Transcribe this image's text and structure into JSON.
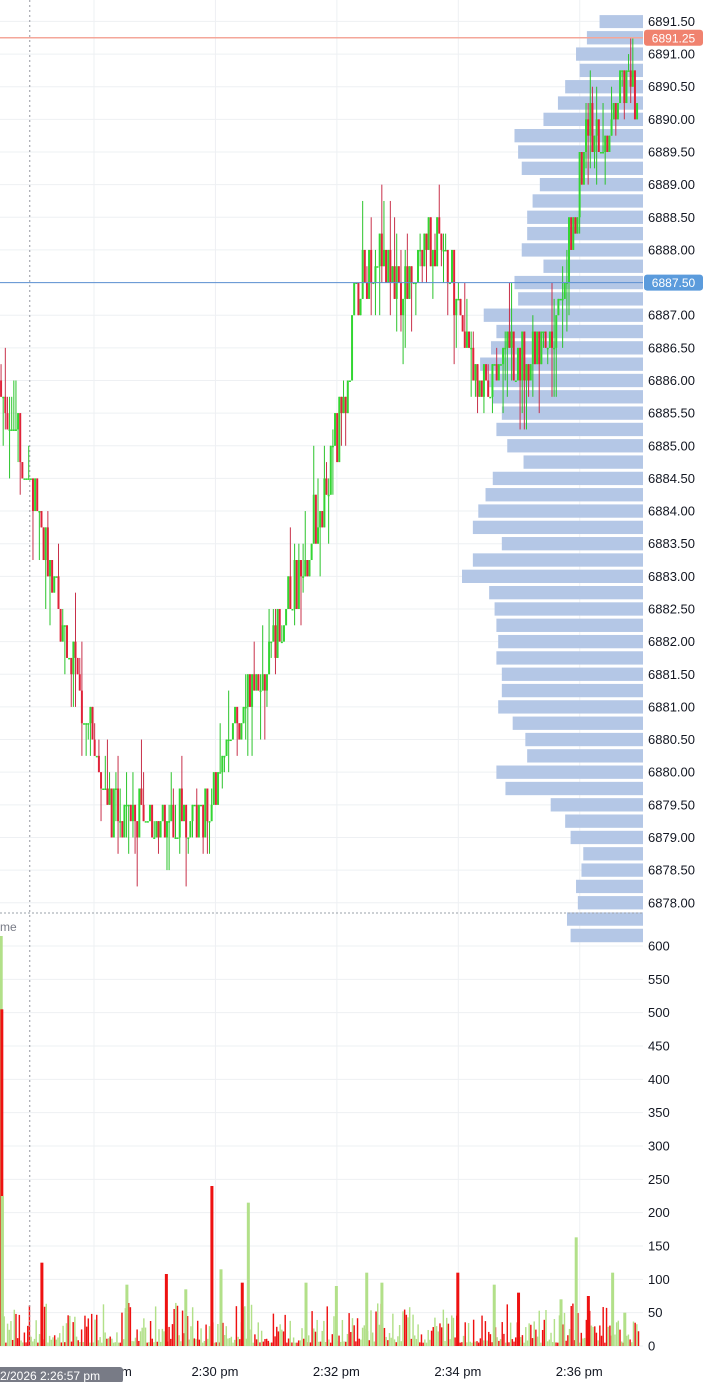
{
  "colors": {
    "up": "#33d633",
    "down": "#e0233a",
    "wick_up": "#2bc42b",
    "wick_down": "#c8304a",
    "vol_up": "#b2e089",
    "vol_down": "#ee1111",
    "profile": "#b4c7e6",
    "grid": "#eef0f3",
    "last_price_line": "#f4a79a",
    "last_price_badge": "#f0826f",
    "ref_line": "#5b8fd2",
    "ref_badge": "#5b9bdc",
    "crosshair": "#9598a1",
    "crosshair_badge": "#787b86"
  },
  "chart_data": [
    {
      "type": "candlestick",
      "title": "",
      "price_axis": {
        "ticks": [
          "6891.50",
          "6891.00",
          "6890.50",
          "6890.00",
          "6889.50",
          "6889.00",
          "6888.50",
          "6888.00",
          "6887.50",
          "6887.00",
          "6886.50",
          "6886.00",
          "6885.50",
          "6885.00",
          "6884.50",
          "6884.00",
          "6883.50",
          "6883.00",
          "6882.50",
          "6882.00",
          "6881.50",
          "6881.00",
          "6880.50",
          "6880.00",
          "6879.50",
          "6879.00",
          "6878.50",
          "6878.00"
        ],
        "range": [
          6877.65,
          6891.62
        ],
        "grid": true
      },
      "time_axis": {
        "labels": [
          "2:30 pm",
          "2:32 pm",
          "2:34 pm",
          "2:36 pm"
        ],
        "label_minutes": [
          30,
          32,
          34,
          36
        ],
        "range_minutes": [
          26.46,
          37.05
        ],
        "partial_label": "m",
        "grid": true
      },
      "last_price": "6891.25",
      "reference_price": "6887.50",
      "crosshair_time": "2/2026 2:26:57 pm",
      "price_path": [
        [
          26.5,
          6886.0
        ],
        [
          26.75,
          6885.3
        ],
        [
          27.1,
          6884.0
        ],
        [
          27.4,
          6882.6
        ],
        [
          27.7,
          6881.5
        ],
        [
          28.0,
          6880.5
        ],
        [
          28.3,
          6879.4
        ],
        [
          28.7,
          6879.2
        ],
        [
          29.0,
          6879.4
        ],
        [
          29.3,
          6879.3
        ],
        [
          29.7,
          6879.4
        ],
        [
          30.0,
          6879.7
        ],
        [
          30.3,
          6880.6
        ],
        [
          30.6,
          6881.5
        ],
        [
          30.9,
          6881.8
        ],
        [
          31.2,
          6882.6
        ],
        [
          31.55,
          6883.5
        ],
        [
          31.9,
          6884.6
        ],
        [
          32.15,
          6885.8
        ],
        [
          32.3,
          6887.2
        ],
        [
          32.7,
          6888.0
        ],
        [
          33.1,
          6887.4
        ],
        [
          33.4,
          6887.9
        ],
        [
          33.7,
          6888.3
        ],
        [
          33.95,
          6887.4
        ],
        [
          34.2,
          6886.2
        ],
        [
          34.45,
          6886.1
        ],
        [
          34.7,
          6886.4
        ],
        [
          34.95,
          6886.5
        ],
        [
          35.2,
          6886.3
        ],
        [
          35.5,
          6886.6
        ],
        [
          35.75,
          6887.6
        ],
        [
          35.95,
          6888.6
        ],
        [
          36.1,
          6890.0
        ],
        [
          36.35,
          6889.7
        ],
        [
          36.6,
          6890.0
        ],
        [
          36.8,
          6890.8
        ],
        [
          37.0,
          6889.8
        ]
      ],
      "candle_count": 300,
      "price_extremes": {
        "high": "6891.25",
        "low": "6878.25"
      }
    },
    {
      "type": "horizontal-bar",
      "title": "",
      "series_role": "volume-profile",
      "price_levels": [
        6891.62,
        6891.375,
        6891.125,
        6890.875,
        6890.625,
        6890.375,
        6890.125,
        6889.875,
        6889.625,
        6889.375,
        6889.125,
        6888.875,
        6888.625,
        6888.375,
        6888.125,
        6887.875,
        6887.625,
        6887.375,
        6887.125,
        6886.875,
        6886.625,
        6886.375,
        6886.125,
        6885.875,
        6885.625,
        6885.375,
        6885.125,
        6884.875,
        6884.625,
        6884.375,
        6884.125,
        6883.875,
        6883.625,
        6883.375,
        6883.125,
        6882.875,
        6882.625,
        6882.375,
        6882.125,
        6881.875,
        6881.625,
        6881.375,
        6881.125,
        6880.875,
        6880.625,
        6880.375,
        6880.125,
        6879.875,
        6879.625,
        6879.375,
        6879.125,
        6878.875,
        6878.625,
        6878.375,
        6878.125,
        6877.875,
        6877.625
      ],
      "values": [
        0.24,
        0.31,
        0.37,
        0.35,
        0.43,
        0.47,
        0.55,
        0.71,
        0.69,
        0.67,
        0.57,
        0.61,
        0.64,
        0.64,
        0.67,
        0.55,
        0.71,
        0.69,
        0.88,
        0.81,
        0.84,
        0.9,
        0.85,
        0.83,
        0.78,
        0.81,
        0.75,
        0.66,
        0.83,
        0.87,
        0.91,
        0.94,
        0.78,
        0.94,
        1.0,
        0.85,
        0.82,
        0.81,
        0.8,
        0.81,
        0.78,
        0.78,
        0.8,
        0.72,
        0.65,
        0.64,
        0.81,
        0.76,
        0.51,
        0.43,
        0.4,
        0.33,
        0.34,
        0.37,
        0.36,
        0.42,
        0.4
      ],
      "value_scale": "relative to the longest bar"
    },
    {
      "type": "bar",
      "title": "",
      "pane_title": "me",
      "y_axis": {
        "ticks": [
          "600",
          "550",
          "500",
          "450",
          "400",
          "350",
          "300",
          "250",
          "200",
          "150",
          "100",
          "50",
          "0"
        ],
        "range": [
          0,
          630
        ],
        "grid": true
      },
      "series": [
        {
          "name": "",
          "role": "up-volume"
        },
        {
          "name": "",
          "role": "down-volume"
        }
      ],
      "notable_bars": [
        {
          "minute": 26.48,
          "value": 615,
          "direction": "up"
        },
        {
          "minute": 26.49,
          "value": 505,
          "direction": "down"
        },
        {
          "minute": 26.5,
          "value": 225,
          "direction": "up"
        },
        {
          "minute": 27.15,
          "value": 125,
          "direction": "down"
        },
        {
          "minute": 28.55,
          "value": 92,
          "direction": "up"
        },
        {
          "minute": 29.2,
          "value": 108,
          "direction": "down"
        },
        {
          "minute": 29.52,
          "value": 85,
          "direction": "up"
        },
        {
          "minute": 29.95,
          "value": 240,
          "direction": "down"
        },
        {
          "minute": 30.1,
          "value": 115,
          "direction": "up"
        },
        {
          "minute": 30.45,
          "value": 95,
          "direction": "down"
        },
        {
          "minute": 30.55,
          "value": 215,
          "direction": "up"
        },
        {
          "minute": 31.5,
          "value": 95,
          "direction": "up"
        },
        {
          "minute": 32.0,
          "value": 90,
          "direction": "up"
        },
        {
          "minute": 32.5,
          "value": 110,
          "direction": "up"
        },
        {
          "minute": 32.75,
          "value": 95,
          "direction": "up"
        },
        {
          "minute": 34.0,
          "value": 110,
          "direction": "down"
        },
        {
          "minute": 34.6,
          "value": 92,
          "direction": "up"
        },
        {
          "minute": 35.0,
          "value": 80,
          "direction": "down"
        },
        {
          "minute": 35.7,
          "value": 70,
          "direction": "up"
        },
        {
          "minute": 35.95,
          "value": 163,
          "direction": "up"
        },
        {
          "minute": 36.15,
          "value": 75,
          "direction": "down"
        },
        {
          "minute": 36.55,
          "value": 110,
          "direction": "up"
        },
        {
          "minute": 36.75,
          "value": 50,
          "direction": "up"
        }
      ],
      "bar_count": 380,
      "typical_max": 60
    }
  ]
}
